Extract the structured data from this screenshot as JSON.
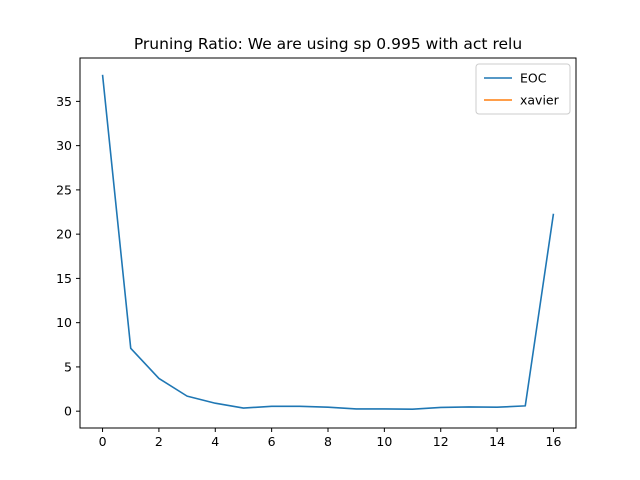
{
  "chart_data": {
    "type": "line",
    "title": "Pruning Ratio: We are using sp 0.995 with act relu",
    "xlabel": "",
    "ylabel": "",
    "xlim": [
      -0.8,
      16.8
    ],
    "ylim": [
      -1.9,
      39.9
    ],
    "xticks": [
      0,
      2,
      4,
      6,
      8,
      10,
      12,
      14,
      16
    ],
    "yticks": [
      0,
      5,
      10,
      15,
      20,
      25,
      30,
      35
    ],
    "grid": false,
    "legend_position": "top-right",
    "series": [
      {
        "name": "EOC",
        "color": "#1f77b4",
        "x": [
          0,
          1,
          2,
          3,
          4,
          5,
          6,
          7,
          8,
          9,
          10,
          11,
          12,
          13,
          14,
          15,
          16
        ],
        "y": [
          38.0,
          7.1,
          3.7,
          1.7,
          0.9,
          0.35,
          0.55,
          0.55,
          0.45,
          0.25,
          0.25,
          0.22,
          0.42,
          0.48,
          0.45,
          0.6,
          22.3
        ]
      },
      {
        "name": "xavier",
        "color": "#ff7f0e",
        "x": [],
        "y": []
      }
    ]
  }
}
